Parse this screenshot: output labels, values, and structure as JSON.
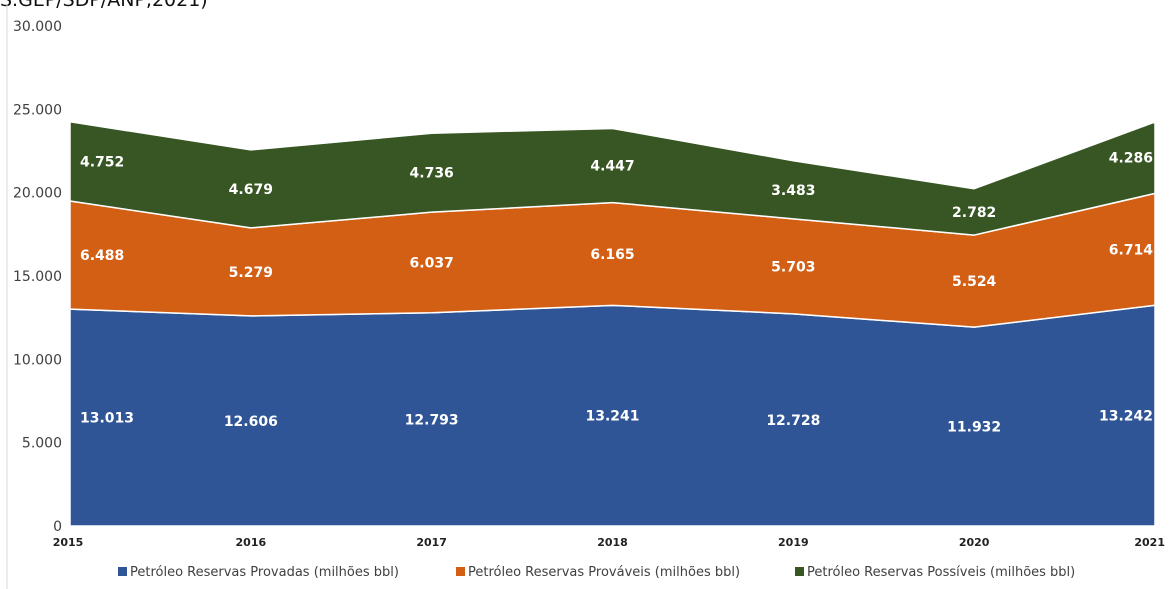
{
  "header_fragment": "S.GEP/SDP/ANP,2021)",
  "colors": {
    "provadas": "#2F5597",
    "provaveis": "#D35F15",
    "possiveis": "#375623"
  },
  "chart_data": {
    "type": "area",
    "stacked": true,
    "title": "",
    "xlabel": "",
    "ylabel": "",
    "ylim": [
      0,
      30000
    ],
    "grid": false,
    "legend_position": "bottom",
    "x": [
      "2015",
      "2016",
      "2017",
      "2018",
      "2019",
      "2020",
      "2021"
    ],
    "y_ticks": [
      "0",
      "5.000",
      "10.000",
      "15.000",
      "20.000",
      "25.000",
      "30.000"
    ],
    "series": [
      {
        "name": "Petróleo Reservas Provadas (milhões bbl)",
        "values": [
          13013,
          12606,
          12793,
          13241,
          12728,
          11932,
          13242
        ],
        "labels": [
          "13.013",
          "12.606",
          "12.793",
          "13.241",
          "12.728",
          "11.932",
          "13.242"
        ]
      },
      {
        "name": "Petróleo Reservas Prováveis (milhões bbl)",
        "values": [
          6488,
          5279,
          6037,
          6165,
          5703,
          5524,
          6714
        ],
        "labels": [
          "6.488",
          "5.279",
          "6.037",
          "6.165",
          "5.703",
          "5.524",
          "6.714"
        ]
      },
      {
        "name": "Petróleo Reservas Possíveis (milhões bbl)",
        "values": [
          4752,
          4679,
          4736,
          4447,
          3483,
          2782,
          4286
        ],
        "labels": [
          "4.752",
          "4.679",
          "4.736",
          "4.447",
          "3.483",
          "2.782",
          "4.286"
        ]
      }
    ]
  }
}
